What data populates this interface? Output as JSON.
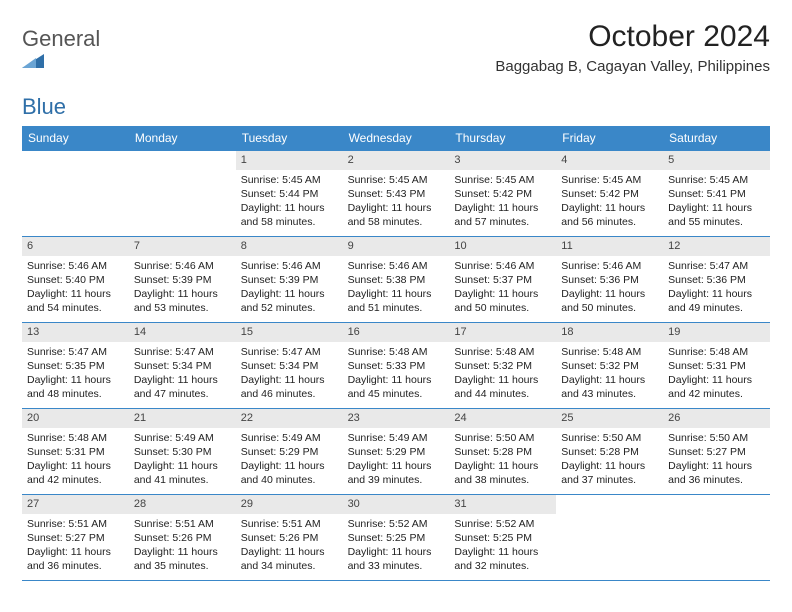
{
  "brand": {
    "name_a": "General",
    "name_b": "Blue"
  },
  "title": "October 2024",
  "location": "Baggabag B, Cagayan Valley, Philippines",
  "colors": {
    "header_bg": "#3a87c8",
    "header_fg": "#ffffff",
    "daynum_bg": "#e9e9e9",
    "border": "#3a87c8",
    "brand_blue": "#2f6fa8"
  },
  "weekdays": [
    "Sunday",
    "Monday",
    "Tuesday",
    "Wednesday",
    "Thursday",
    "Friday",
    "Saturday"
  ],
  "first_weekday_index": 2,
  "days": [
    {
      "n": "1",
      "sunrise": "5:45 AM",
      "sunset": "5:44 PM",
      "daylight": "11 hours and 58 minutes."
    },
    {
      "n": "2",
      "sunrise": "5:45 AM",
      "sunset": "5:43 PM",
      "daylight": "11 hours and 58 minutes."
    },
    {
      "n": "3",
      "sunrise": "5:45 AM",
      "sunset": "5:42 PM",
      "daylight": "11 hours and 57 minutes."
    },
    {
      "n": "4",
      "sunrise": "5:45 AM",
      "sunset": "5:42 PM",
      "daylight": "11 hours and 56 minutes."
    },
    {
      "n": "5",
      "sunrise": "5:45 AM",
      "sunset": "5:41 PM",
      "daylight": "11 hours and 55 minutes."
    },
    {
      "n": "6",
      "sunrise": "5:46 AM",
      "sunset": "5:40 PM",
      "daylight": "11 hours and 54 minutes."
    },
    {
      "n": "7",
      "sunrise": "5:46 AM",
      "sunset": "5:39 PM",
      "daylight": "11 hours and 53 minutes."
    },
    {
      "n": "8",
      "sunrise": "5:46 AM",
      "sunset": "5:39 PM",
      "daylight": "11 hours and 52 minutes."
    },
    {
      "n": "9",
      "sunrise": "5:46 AM",
      "sunset": "5:38 PM",
      "daylight": "11 hours and 51 minutes."
    },
    {
      "n": "10",
      "sunrise": "5:46 AM",
      "sunset": "5:37 PM",
      "daylight": "11 hours and 50 minutes."
    },
    {
      "n": "11",
      "sunrise": "5:46 AM",
      "sunset": "5:36 PM",
      "daylight": "11 hours and 50 minutes."
    },
    {
      "n": "12",
      "sunrise": "5:47 AM",
      "sunset": "5:36 PM",
      "daylight": "11 hours and 49 minutes."
    },
    {
      "n": "13",
      "sunrise": "5:47 AM",
      "sunset": "5:35 PM",
      "daylight": "11 hours and 48 minutes."
    },
    {
      "n": "14",
      "sunrise": "5:47 AM",
      "sunset": "5:34 PM",
      "daylight": "11 hours and 47 minutes."
    },
    {
      "n": "15",
      "sunrise": "5:47 AM",
      "sunset": "5:34 PM",
      "daylight": "11 hours and 46 minutes."
    },
    {
      "n": "16",
      "sunrise": "5:48 AM",
      "sunset": "5:33 PM",
      "daylight": "11 hours and 45 minutes."
    },
    {
      "n": "17",
      "sunrise": "5:48 AM",
      "sunset": "5:32 PM",
      "daylight": "11 hours and 44 minutes."
    },
    {
      "n": "18",
      "sunrise": "5:48 AM",
      "sunset": "5:32 PM",
      "daylight": "11 hours and 43 minutes."
    },
    {
      "n": "19",
      "sunrise": "5:48 AM",
      "sunset": "5:31 PM",
      "daylight": "11 hours and 42 minutes."
    },
    {
      "n": "20",
      "sunrise": "5:48 AM",
      "sunset": "5:31 PM",
      "daylight": "11 hours and 42 minutes."
    },
    {
      "n": "21",
      "sunrise": "5:49 AM",
      "sunset": "5:30 PM",
      "daylight": "11 hours and 41 minutes."
    },
    {
      "n": "22",
      "sunrise": "5:49 AM",
      "sunset": "5:29 PM",
      "daylight": "11 hours and 40 minutes."
    },
    {
      "n": "23",
      "sunrise": "5:49 AM",
      "sunset": "5:29 PM",
      "daylight": "11 hours and 39 minutes."
    },
    {
      "n": "24",
      "sunrise": "5:50 AM",
      "sunset": "5:28 PM",
      "daylight": "11 hours and 38 minutes."
    },
    {
      "n": "25",
      "sunrise": "5:50 AM",
      "sunset": "5:28 PM",
      "daylight": "11 hours and 37 minutes."
    },
    {
      "n": "26",
      "sunrise": "5:50 AM",
      "sunset": "5:27 PM",
      "daylight": "11 hours and 36 minutes."
    },
    {
      "n": "27",
      "sunrise": "5:51 AM",
      "sunset": "5:27 PM",
      "daylight": "11 hours and 36 minutes."
    },
    {
      "n": "28",
      "sunrise": "5:51 AM",
      "sunset": "5:26 PM",
      "daylight": "11 hours and 35 minutes."
    },
    {
      "n": "29",
      "sunrise": "5:51 AM",
      "sunset": "5:26 PM",
      "daylight": "11 hours and 34 minutes."
    },
    {
      "n": "30",
      "sunrise": "5:52 AM",
      "sunset": "5:25 PM",
      "daylight": "11 hours and 33 minutes."
    },
    {
      "n": "31",
      "sunrise": "5:52 AM",
      "sunset": "5:25 PM",
      "daylight": "11 hours and 32 minutes."
    }
  ],
  "labels": {
    "sunrise": "Sunrise:",
    "sunset": "Sunset:",
    "daylight": "Daylight:"
  }
}
